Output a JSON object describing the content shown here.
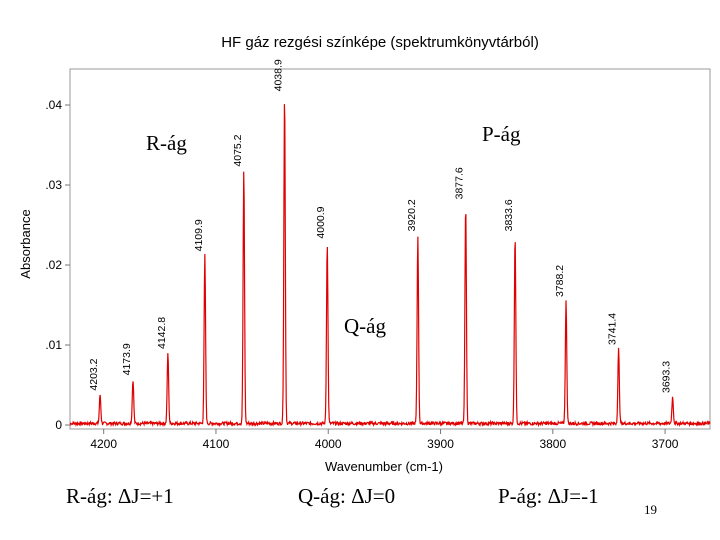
{
  "slide": {
    "title": "HF gáz rezgési színképe (spektrumkönyvtárból)",
    "branch_labels": {
      "r": "R-ág",
      "p": "P-ág",
      "q": "Q-ág"
    },
    "captions": {
      "r": "R-ág: ΔJ=+1",
      "q": "Q-ág: ΔJ=0",
      "p": "P-ág: ΔJ=-1"
    },
    "page_number": "19"
  },
  "chart_data": {
    "type": "line",
    "xlabel": "Wavenumber (cm-1)",
    "ylabel": "Absorbance",
    "xlim": [
      4230,
      3660
    ],
    "x_reversed": true,
    "ylim": [
      -0.0005,
      0.0445
    ],
    "xticks": [
      {
        "value": 4200,
        "label": "4200"
      },
      {
        "value": 4100,
        "label": "4100"
      },
      {
        "value": 4000,
        "label": "4000"
      },
      {
        "value": 3900,
        "label": "3900"
      },
      {
        "value": 3800,
        "label": "3800"
      },
      {
        "value": 3700,
        "label": "3700"
      }
    ],
    "yticks": [
      {
        "value": 0,
        "label": "0"
      },
      {
        "value": 0.01,
        "label": ".01"
      },
      {
        "value": 0.02,
        "label": ".02"
      },
      {
        "value": 0.03,
        "label": ".03"
      },
      {
        "value": 0.04,
        "label": ".04"
      }
    ],
    "baseline": 0.0002,
    "line_color": "#e00000",
    "peaks": [
      {
        "x": 4203.2,
        "y": 0.0038,
        "label": "4203.2"
      },
      {
        "x": 4173.9,
        "y": 0.0057,
        "label": "4173.9"
      },
      {
        "x": 4142.8,
        "y": 0.009,
        "label": "4142.8"
      },
      {
        "x": 4109.9,
        "y": 0.0212,
        "label": "4109.9"
      },
      {
        "x": 4075.2,
        "y": 0.0318,
        "label": "4075.2"
      },
      {
        "x": 4038.9,
        "y": 0.0412,
        "label": "4038.9"
      },
      {
        "x": 4000.9,
        "y": 0.0228,
        "label": "4000.9"
      },
      {
        "x": 3920.2,
        "y": 0.0237,
        "label": "3920.2"
      },
      {
        "x": 3877.6,
        "y": 0.0277,
        "label": "3877.6"
      },
      {
        "x": 3833.6,
        "y": 0.0237,
        "label": "3833.6"
      },
      {
        "x": 3788.2,
        "y": 0.0155,
        "label": "3788.2"
      },
      {
        "x": 3741.4,
        "y": 0.0095,
        "label": "3741.4"
      },
      {
        "x": 3693.3,
        "y": 0.0035,
        "label": "3693.3"
      }
    ]
  }
}
